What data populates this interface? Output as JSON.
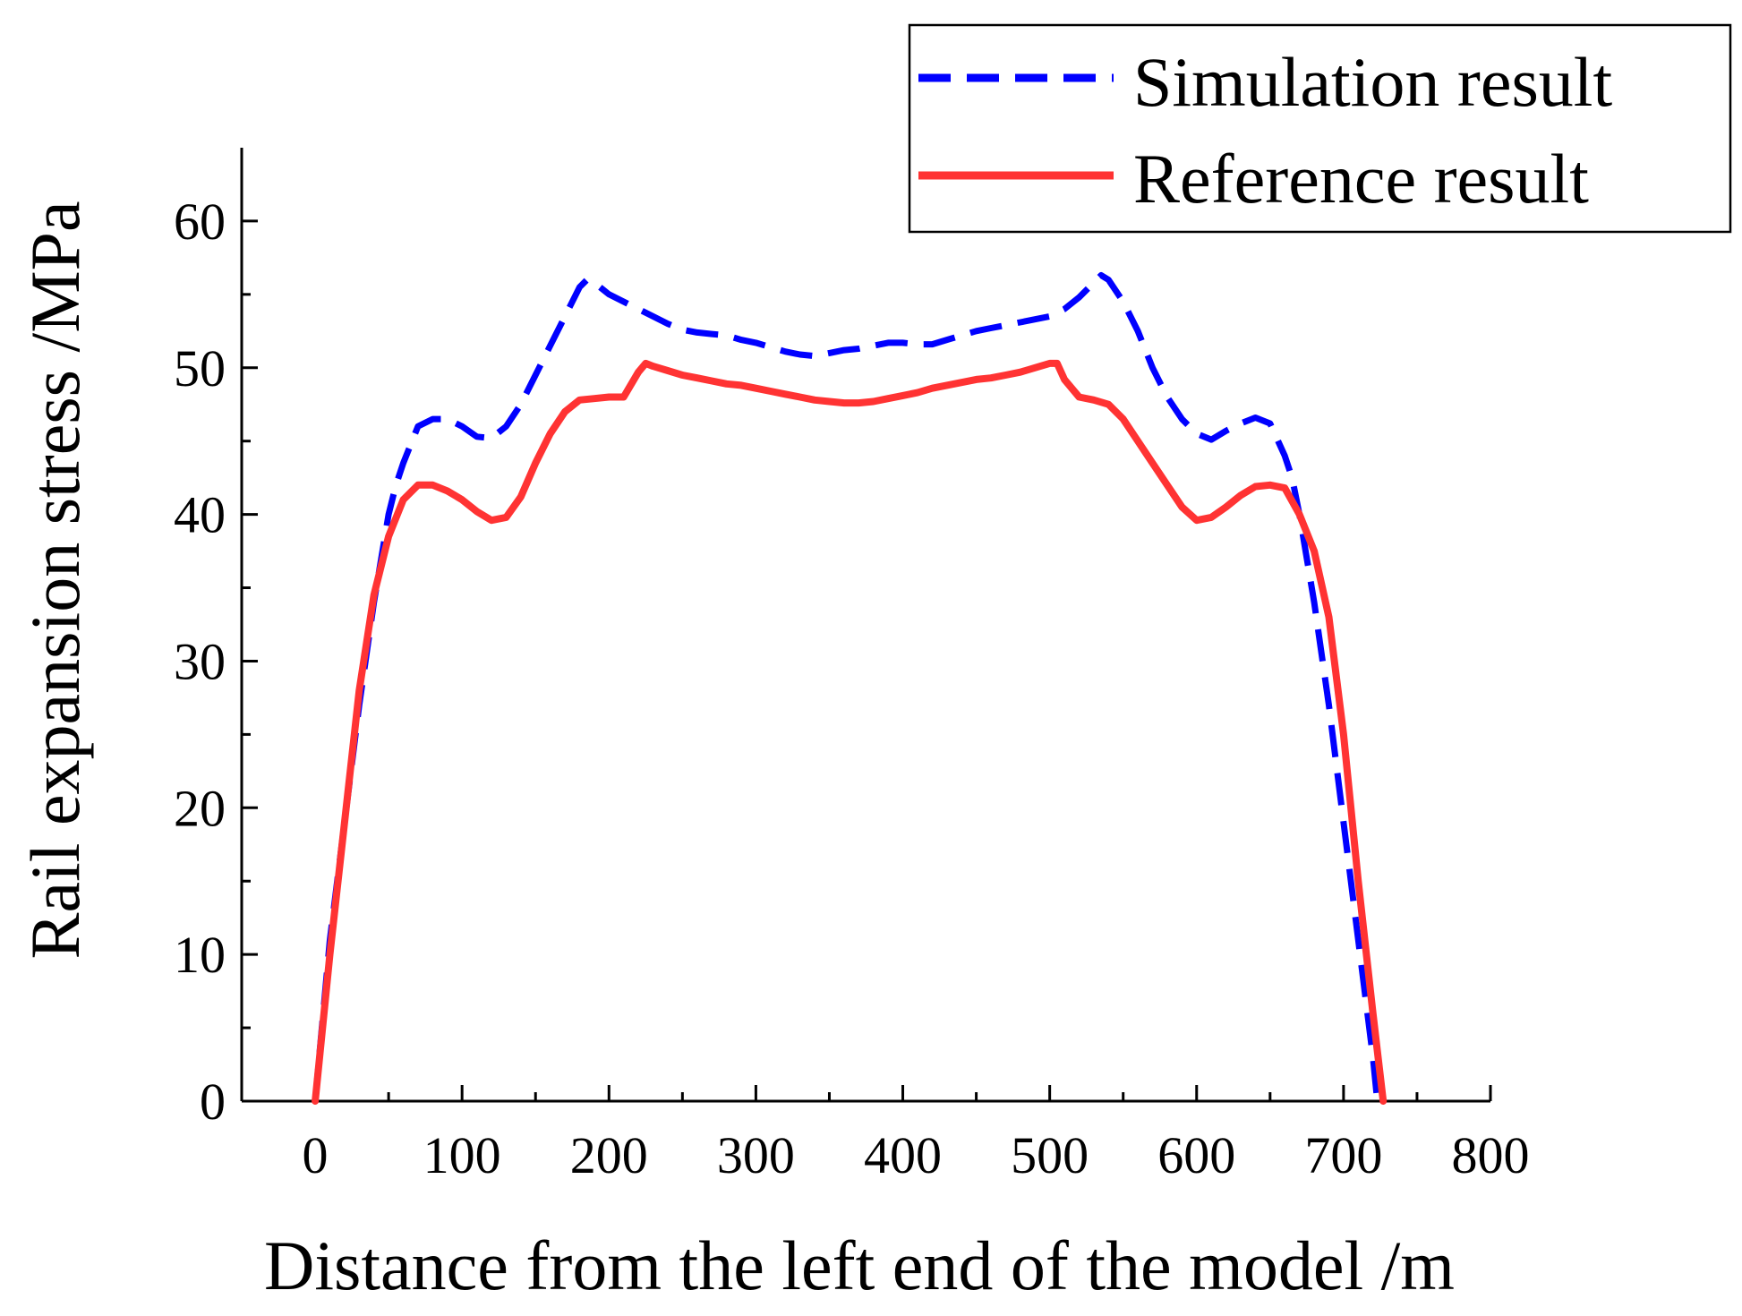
{
  "chart_data": {
    "type": "line",
    "title": "",
    "xlabel": "Distance from the left end of the model /m",
    "ylabel": "Rail expansion stress /MPa",
    "xlim": [
      -50,
      800
    ],
    "ylim": [
      0,
      65
    ],
    "xticks": [
      0,
      100,
      200,
      300,
      400,
      500,
      600,
      700,
      800
    ],
    "xtick_labels": [
      "0",
      "100",
      "200",
      "300",
      "400",
      "500",
      "600",
      "700",
      "800"
    ],
    "yticks": [
      0,
      10,
      20,
      30,
      40,
      50,
      60
    ],
    "ytick_labels": [
      "0",
      "10",
      "20",
      "30",
      "40",
      "50",
      "60"
    ],
    "grid": false,
    "legend_position": "top-right",
    "series": [
      {
        "name": "Simulation result",
        "color": "#0000ff",
        "style": "dashed",
        "x": [
          0,
          10,
          20,
          30,
          40,
          50,
          55,
          60,
          70,
          80,
          90,
          100,
          110,
          120,
          130,
          140,
          150,
          160,
          170,
          180,
          185,
          190,
          200,
          210,
          220,
          230,
          240,
          250,
          260,
          270,
          280,
          290,
          300,
          310,
          320,
          330,
          340,
          350,
          360,
          370,
          380,
          390,
          400,
          410,
          420,
          430,
          440,
          450,
          460,
          470,
          480,
          490,
          500,
          510,
          520,
          530,
          535,
          540,
          550,
          560,
          570,
          580,
          590,
          600,
          610,
          620,
          630,
          640,
          650,
          660,
          665,
          670,
          680,
          690,
          700,
          710,
          720,
          723
        ],
        "values": [
          0,
          11,
          19,
          27,
          34,
          40,
          42,
          43.5,
          46,
          46.5,
          46.5,
          46,
          45.3,
          45.2,
          46,
          47.5,
          49.5,
          51.5,
          53.5,
          55.5,
          56,
          55.8,
          55,
          54.5,
          54,
          53.5,
          53,
          52.6,
          52.4,
          52.3,
          52.2,
          51.9,
          51.7,
          51.4,
          51.1,
          50.9,
          50.8,
          51,
          51.2,
          51.3,
          51.5,
          51.7,
          51.7,
          51.6,
          51.6,
          51.9,
          52.2,
          52.5,
          52.7,
          52.9,
          53.1,
          53.3,
          53.5,
          54,
          54.8,
          55.8,
          56.3,
          56,
          54.5,
          52.5,
          50,
          48,
          46.5,
          45.5,
          45.1,
          45.7,
          46.2,
          46.6,
          46.2,
          44,
          42.5,
          40,
          34,
          27,
          19,
          11,
          3,
          0
        ]
      },
      {
        "name": "Reference result",
        "color": "#ff3333",
        "style": "solid",
        "x": [
          0,
          10,
          20,
          30,
          40,
          50,
          60,
          70,
          80,
          90,
          100,
          110,
          120,
          130,
          140,
          150,
          160,
          170,
          180,
          190,
          200,
          210,
          220,
          225,
          230,
          240,
          250,
          260,
          270,
          280,
          290,
          300,
          310,
          320,
          330,
          340,
          350,
          360,
          370,
          380,
          390,
          400,
          410,
          420,
          430,
          440,
          450,
          460,
          470,
          480,
          490,
          500,
          505,
          510,
          520,
          530,
          540,
          550,
          560,
          570,
          580,
          590,
          600,
          610,
          620,
          630,
          640,
          650,
          660,
          670,
          680,
          690,
          700,
          710,
          720,
          727
        ],
        "values": [
          0,
          10,
          19,
          28,
          34.5,
          38.5,
          41,
          42,
          42,
          41.6,
          41,
          40.2,
          39.6,
          39.8,
          41.2,
          43.5,
          45.5,
          47,
          47.8,
          47.9,
          48,
          48,
          49.7,
          50.3,
          50.1,
          49.8,
          49.5,
          49.3,
          49.1,
          48.9,
          48.8,
          48.6,
          48.4,
          48.2,
          48,
          47.8,
          47.7,
          47.6,
          47.6,
          47.7,
          47.9,
          48.1,
          48.3,
          48.6,
          48.8,
          49,
          49.2,
          49.3,
          49.5,
          49.7,
          50,
          50.3,
          50.3,
          49.2,
          48,
          47.8,
          47.5,
          46.5,
          45,
          43.5,
          42,
          40.5,
          39.6,
          39.8,
          40.5,
          41.3,
          41.9,
          42,
          41.8,
          40,
          37.5,
          33,
          25,
          15,
          6,
          0
        ]
      }
    ]
  }
}
